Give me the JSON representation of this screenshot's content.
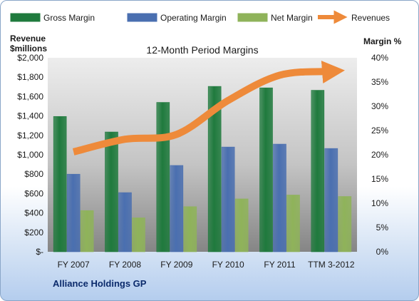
{
  "chart_data": {
    "type": "bar",
    "title": "12-Month Period Margins",
    "company": "Alliance Holdings GP",
    "categories": [
      "FY 2007",
      "FY 2008",
      "FY 2009",
      "FY 2010",
      "FY 2011",
      "TTM 3-2012"
    ],
    "y_left": {
      "label_line1": "Revenue",
      "label_line2": "$millions",
      "range": [
        0,
        2000
      ],
      "ticks": [
        0,
        200,
        400,
        600,
        800,
        1000,
        1200,
        1400,
        1600,
        1800,
        2000
      ],
      "tick_labels": [
        "$-",
        "$200",
        "$400",
        "$600",
        "$800",
        "$1,000",
        "$1,200",
        "$1,400",
        "$1,600",
        "$1,800",
        "$2,000"
      ]
    },
    "y_right": {
      "label": "Margin %",
      "range": [
        0,
        40
      ],
      "ticks": [
        0,
        5,
        10,
        15,
        20,
        25,
        30,
        35,
        40
      ],
      "tick_labels": [
        "0%",
        "5%",
        "10%",
        "15%",
        "20%",
        "25%",
        "30%",
        "35%",
        "40%"
      ]
    },
    "series": [
      {
        "name": "Gross Margin",
        "axis": "right",
        "kind": "bar",
        "color": "#1f7a3d",
        "values": [
          27.9,
          24.7,
          30.8,
          34.1,
          33.8,
          33.3
        ]
      },
      {
        "name": "Operating Margin",
        "axis": "right",
        "kind": "bar",
        "color": "#4a6fb0",
        "values": [
          16.0,
          12.2,
          17.8,
          21.6,
          22.2,
          21.3
        ]
      },
      {
        "name": "Net Margin",
        "axis": "right",
        "kind": "bar",
        "color": "#8fb35a",
        "values": [
          8.5,
          7.0,
          9.3,
          10.9,
          11.7,
          11.4
        ]
      },
      {
        "name": "Revenues",
        "axis": "left",
        "kind": "arrow-line",
        "color": "#ee8a3a",
        "values": [
          1030,
          1160,
          1210,
          1560,
          1820,
          1860
        ]
      }
    ],
    "legend_position": "top",
    "grid": false
  }
}
